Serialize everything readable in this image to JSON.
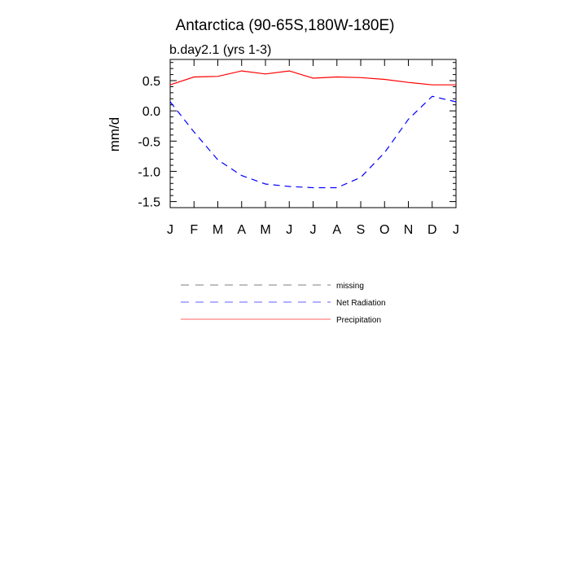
{
  "chart_data": {
    "type": "line",
    "title": "Antarctica (90-65S,180W-180E)",
    "subtitle": "b.day2.1 (yrs 1-3)",
    "xlabel": "",
    "ylabel": "mm/d",
    "x_tick_labels": [
      "J",
      "F",
      "M",
      "A",
      "M",
      "J",
      "J",
      "A",
      "S",
      "O",
      "N",
      "D",
      "J"
    ],
    "y_ticks": [
      0.5,
      0.0,
      -0.5,
      -1.0,
      -1.5
    ],
    "y_tick_labels": [
      "0.5",
      "0.0",
      "-0.5",
      "-1.0",
      "-1.5"
    ],
    "ylim": [
      -1.6,
      0.85
    ],
    "xlim": [
      0,
      12
    ],
    "series": [
      {
        "name": "Precipitation",
        "color": "#ff0000",
        "dash": "solid",
        "x": [
          0,
          1,
          2,
          3,
          4,
          5,
          6,
          7,
          8,
          9,
          10,
          11,
          12
        ],
        "values": [
          0.43,
          0.56,
          0.57,
          0.66,
          0.61,
          0.66,
          0.54,
          0.56,
          0.55,
          0.52,
          0.47,
          0.43,
          0.43
        ]
      },
      {
        "name": "Net Radiation",
        "color": "#0000ff",
        "dash": "dashed",
        "x": [
          0,
          1,
          2,
          3,
          4,
          5,
          6,
          7,
          8,
          9,
          10,
          11,
          12
        ],
        "values": [
          0.15,
          -0.35,
          -0.81,
          -1.07,
          -1.21,
          -1.25,
          -1.27,
          -1.27,
          -1.1,
          -0.69,
          -0.14,
          0.24,
          0.15
        ]
      }
    ],
    "legend": {
      "placement": "below-chart",
      "entries": [
        {
          "label": "missing",
          "color": "#999999",
          "dash": "dashed"
        },
        {
          "label": "Net Radiation",
          "color": "#8080ff",
          "dash": "dashed"
        },
        {
          "label": "Precipitation",
          "color": "#ff8080",
          "dash": "solid"
        }
      ]
    },
    "grid": false
  }
}
